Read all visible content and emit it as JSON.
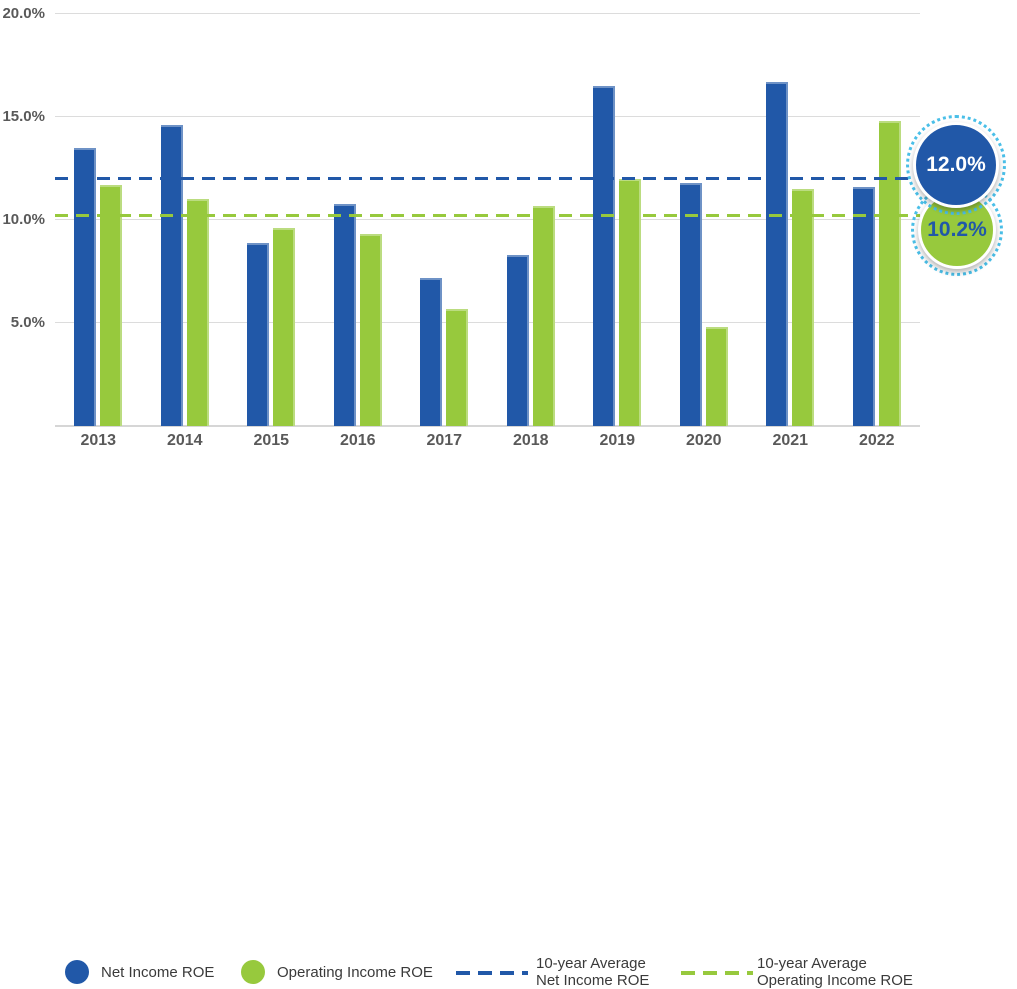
{
  "chart_data": {
    "type": "bar",
    "title": "",
    "categories": [
      "2013",
      "2014",
      "2015",
      "2016",
      "2017",
      "2018",
      "2019",
      "2020",
      "2021",
      "2022"
    ],
    "series": [
      {
        "name": "Net Income ROE",
        "color": "#2158a8",
        "values": [
          13.5,
          14.6,
          8.9,
          10.8,
          7.2,
          8.3,
          16.5,
          11.8,
          16.7,
          11.6
        ]
      },
      {
        "name": "Operating Income ROE",
        "color": "#97c93d",
        "values": [
          11.7,
          11.0,
          9.6,
          9.3,
          5.7,
          10.7,
          12.0,
          4.8,
          11.5,
          14.8
        ]
      }
    ],
    "reference_lines": [
      {
        "name": "10-year Average Net Income ROE",
        "value": 12.0,
        "color": "#2158a8",
        "style": "dashed"
      },
      {
        "name": "10-year Average Operating Income ROE",
        "value": 10.2,
        "color": "#97c93d",
        "style": "dashed"
      }
    ],
    "ylim": [
      0,
      20
    ],
    "yticks": [
      {
        "value": 5,
        "label": "5.0%"
      },
      {
        "value": 10,
        "label": "10.0%"
      },
      {
        "value": 15,
        "label": "15.0%"
      },
      {
        "value": 20,
        "label": "20.0%"
      }
    ],
    "grid": "horizontal",
    "legend_position": "bottom"
  },
  "badges": [
    {
      "label": "12.0%",
      "color": "#2158a8",
      "text_color": "#ffffff",
      "meaning": "10-year Average Net Income ROE"
    },
    {
      "label": "10.2%",
      "color": "#97c93d",
      "text_color": "#2158a8",
      "meaning": "10-year Average Operating Income ROE"
    }
  ],
  "legend": {
    "items": [
      {
        "swatch": "dot",
        "color": "#2158a8",
        "label": "Net Income ROE"
      },
      {
        "swatch": "dot",
        "color": "#97c93d",
        "label": "Operating Income ROE"
      },
      {
        "swatch": "dash",
        "color": "#2158a8",
        "label_line1": "10-year Average",
        "label_line2": "Net Income ROE"
      },
      {
        "swatch": "dash",
        "color": "#97c93d",
        "label_line1": "10-year Average",
        "label_line2": "Operating Income ROE"
      }
    ]
  },
  "colors": {
    "net_income": "#2158a8",
    "operating_income": "#97c93d",
    "gridline": "#dcdcdc",
    "axis_text": "#595959",
    "legend_text": "#3a3a3a",
    "dotted_ring": "#4abfe8"
  }
}
